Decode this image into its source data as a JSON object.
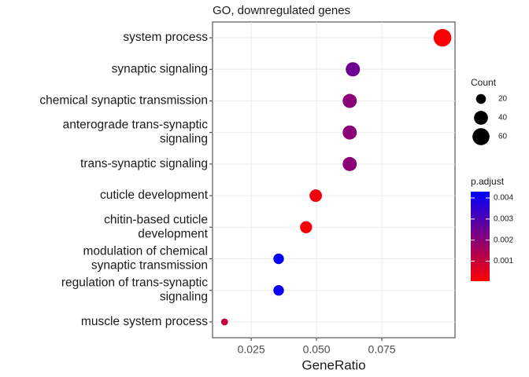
{
  "chart_data": {
    "type": "dot",
    "title": "GO, downregulated genes",
    "x_label": "GeneRatio",
    "categories": [
      "system process",
      "synaptic signaling",
      "chemical synaptic transmission",
      "anterograde trans-synaptic\nsignaling",
      "trans-synaptic signaling",
      "cuticle development",
      "chitin-based cuticle\ndevelopment",
      "modulation of chemical\nsynaptic transmission",
      "regulation of trans-synaptic\nsignaling",
      "muscle system process"
    ],
    "x": [
      0.0982,
      0.0639,
      0.0627,
      0.0627,
      0.0627,
      0.0497,
      0.046,
      0.0355,
      0.0355,
      0.0148
    ],
    "sizes": [
      64,
      42,
      41,
      41,
      41,
      32,
      30,
      23,
      23,
      10
    ],
    "colors_value": [
      0.0001,
      0.0025,
      0.002,
      0.002,
      0.002,
      0.0003,
      0.0002,
      0.0042,
      0.0041,
      0.001
    ],
    "xlim": [
      0.0102,
      0.103
    ],
    "xticks": [
      0.025,
      {
        "value": 0.05,
        "label": "0.050"
      },
      0.075
    ],
    "grid": true,
    "size_legend_title": "Count",
    "size_legend_values": [
      20,
      40,
      60
    ],
    "color_legend_title": "p.adjust",
    "color_lim": [
      5e-05,
      0.0043
    ],
    "color_ticks": [
      0.001,
      0.002,
      0.003,
      0.004
    ],
    "color_low": "#ff0000",
    "color_high": "#0000ff"
  }
}
